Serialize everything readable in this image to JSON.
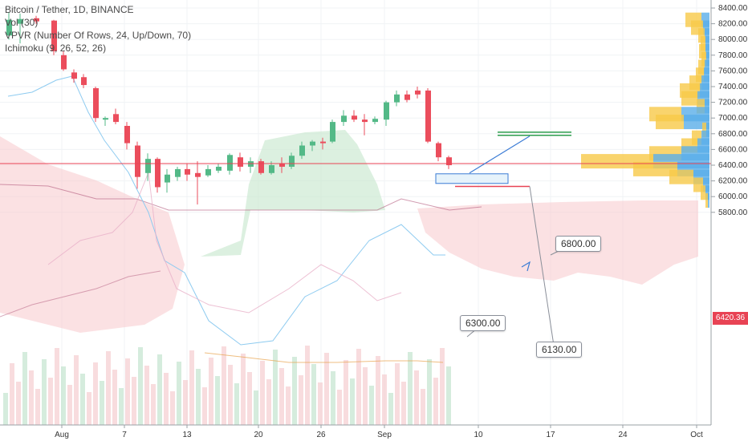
{
  "legend": {
    "symbol": "Bitcoin / Tether, 1D, BINANCE",
    "vol": "Vol (30)",
    "vpvr": "VPVR (Number Of Rows, 24, Up/Down, 70)",
    "ichimoku": "Ichimoku (9, 26, 52, 26)"
  },
  "price_axis": {
    "ticks": [
      "8400.00",
      "8200.00",
      "8000.00",
      "7800.00",
      "7600.00",
      "7400.00",
      "7200.00",
      "7000.00",
      "6800.00",
      "6600.00",
      "6400.00",
      "6200.00",
      "6000.00",
      "5800.00"
    ],
    "last_price": "6420.36"
  },
  "time_axis": {
    "ticks": [
      "Aug",
      "7",
      "13",
      "20",
      "26",
      "Sep",
      "10",
      "17",
      "24",
      "Oct"
    ]
  },
  "annotations": {
    "callout_6800": "6800.00",
    "callout_6300": "6300.00",
    "callout_6130": "6130.00"
  },
  "colors": {
    "up": "#53b987",
    "down": "#eb4d5c",
    "cloud_red": "#f8c9cc",
    "cloud_green": "#c9e8cf",
    "tenkan": "#8ecbf0",
    "kijun": "#b2587b",
    "chikou": "#e8b0c8",
    "vpvr_up": "#f7c948",
    "vpvr_down": "#5aaee8"
  }
}
